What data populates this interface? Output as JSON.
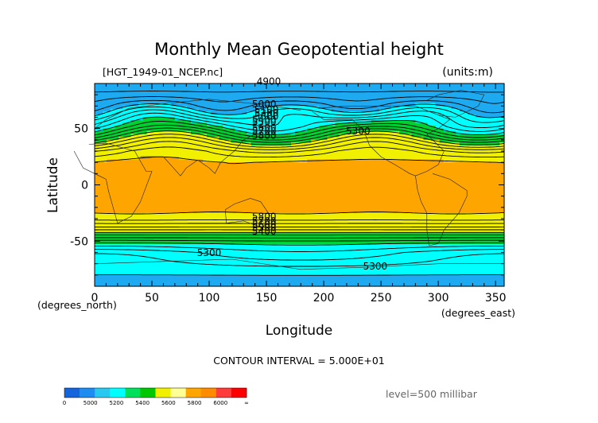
{
  "chart_data": {
    "type": "heatmap",
    "title": "Monthly Mean Geopotential height",
    "file_label": "[HGT_1949-01_NCEP.nc]",
    "units_label": "(units:m)",
    "xlabel": "Longitude",
    "ylabel": "Latitude",
    "x_unit_label": "(degrees_east)",
    "y_unit_label": "(degrees_north)",
    "xlim": [
      0,
      357.5
    ],
    "ylim": [
      -90,
      90
    ],
    "x_ticks": [
      0,
      50,
      100,
      150,
      200,
      250,
      300,
      350
    ],
    "y_ticks": [
      -50,
      0,
      50
    ],
    "contour_interval_text": "CONTOUR INTERVAL = 5.000E+01",
    "level_text": "level=500 millibar",
    "contour_labels": [
      "4900",
      "5000",
      "5100",
      "5200",
      "5300",
      "5400",
      "5500",
      "5600",
      "5700",
      "5800",
      "5800",
      "5700",
      "5600",
      "5500",
      "5400",
      "5300",
      "5300",
      "5300"
    ],
    "colorbar": {
      "tick_labels": [
        "0",
        "5000",
        "5200",
        "5400",
        "5600",
        "5800",
        "6000",
        "∞"
      ],
      "colors": [
        "#1464dc",
        "#1e8cf0",
        "#28c8f0",
        "#00ffff",
        "#00e05a",
        "#00c800",
        "#f0f000",
        "#ffff96",
        "#ffa500",
        "#ff8c00",
        "#ff3c3c",
        "#ff0000"
      ]
    },
    "bands": [
      {
        "min": 5850,
        "max": 6000,
        "color": "#ffa500"
      },
      {
        "min": 5600,
        "max": 5850,
        "color": "#f0f000"
      },
      {
        "min": 5400,
        "max": 5600,
        "color": "#00d030"
      },
      {
        "min": 5200,
        "max": 5400,
        "color": "#00ffff"
      },
      {
        "min": 5000,
        "max": 5200,
        "color": "#1eaaf0"
      },
      {
        "min": 0,
        "max": 5000,
        "color": "#1464dc"
      }
    ],
    "zonal_profile": {
      "lat": [
        90,
        80,
        70,
        60,
        52,
        45,
        38,
        30,
        20,
        0,
        -20,
        -30,
        -38,
        -45,
        -52,
        -60,
        -70,
        -80,
        -90
      ],
      "height": [
        5000,
        5070,
        5170,
        5300,
        5400,
        5520,
        5650,
        5780,
        5860,
        5880,
        5880,
        5820,
        5690,
        5540,
        5400,
        5300,
        5250,
        5200,
        5180
      ]
    }
  }
}
